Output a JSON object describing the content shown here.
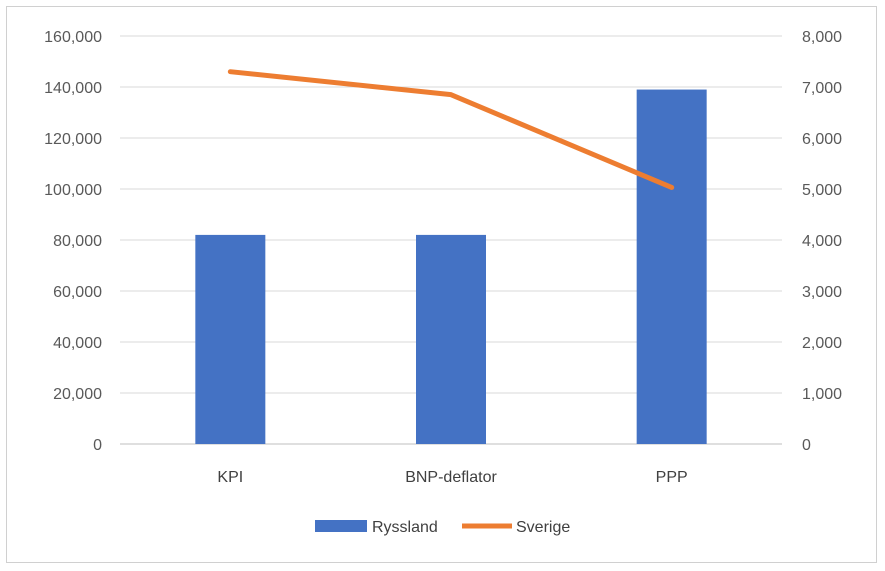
{
  "chart_data": {
    "type": "bar",
    "categories": [
      "KPI",
      "BNP-deflator",
      "PPP"
    ],
    "series": [
      {
        "name": "Ryssland",
        "kind": "bar",
        "axis": "left",
        "color": "#4472C4",
        "values": [
          82000,
          82000,
          139000
        ]
      },
      {
        "name": "Sverige",
        "kind": "line",
        "axis": "right",
        "color": "#ED7D31",
        "values": [
          7300,
          6850,
          5030
        ]
      }
    ],
    "left_axis": {
      "min": 0,
      "max": 160000,
      "step": 20000,
      "tick_labels": [
        "0",
        "20,000",
        "40,000",
        "60,000",
        "80,000",
        "100,000",
        "120,000",
        "140,000",
        "160,000"
      ]
    },
    "right_axis": {
      "min": 0,
      "max": 8000,
      "step": 1000,
      "tick_labels": [
        "0",
        "1,000",
        "2,000",
        "3,000",
        "4,000",
        "5,000",
        "6,000",
        "7,000",
        "8,000"
      ]
    },
    "grid": true,
    "legend": "bottom"
  }
}
